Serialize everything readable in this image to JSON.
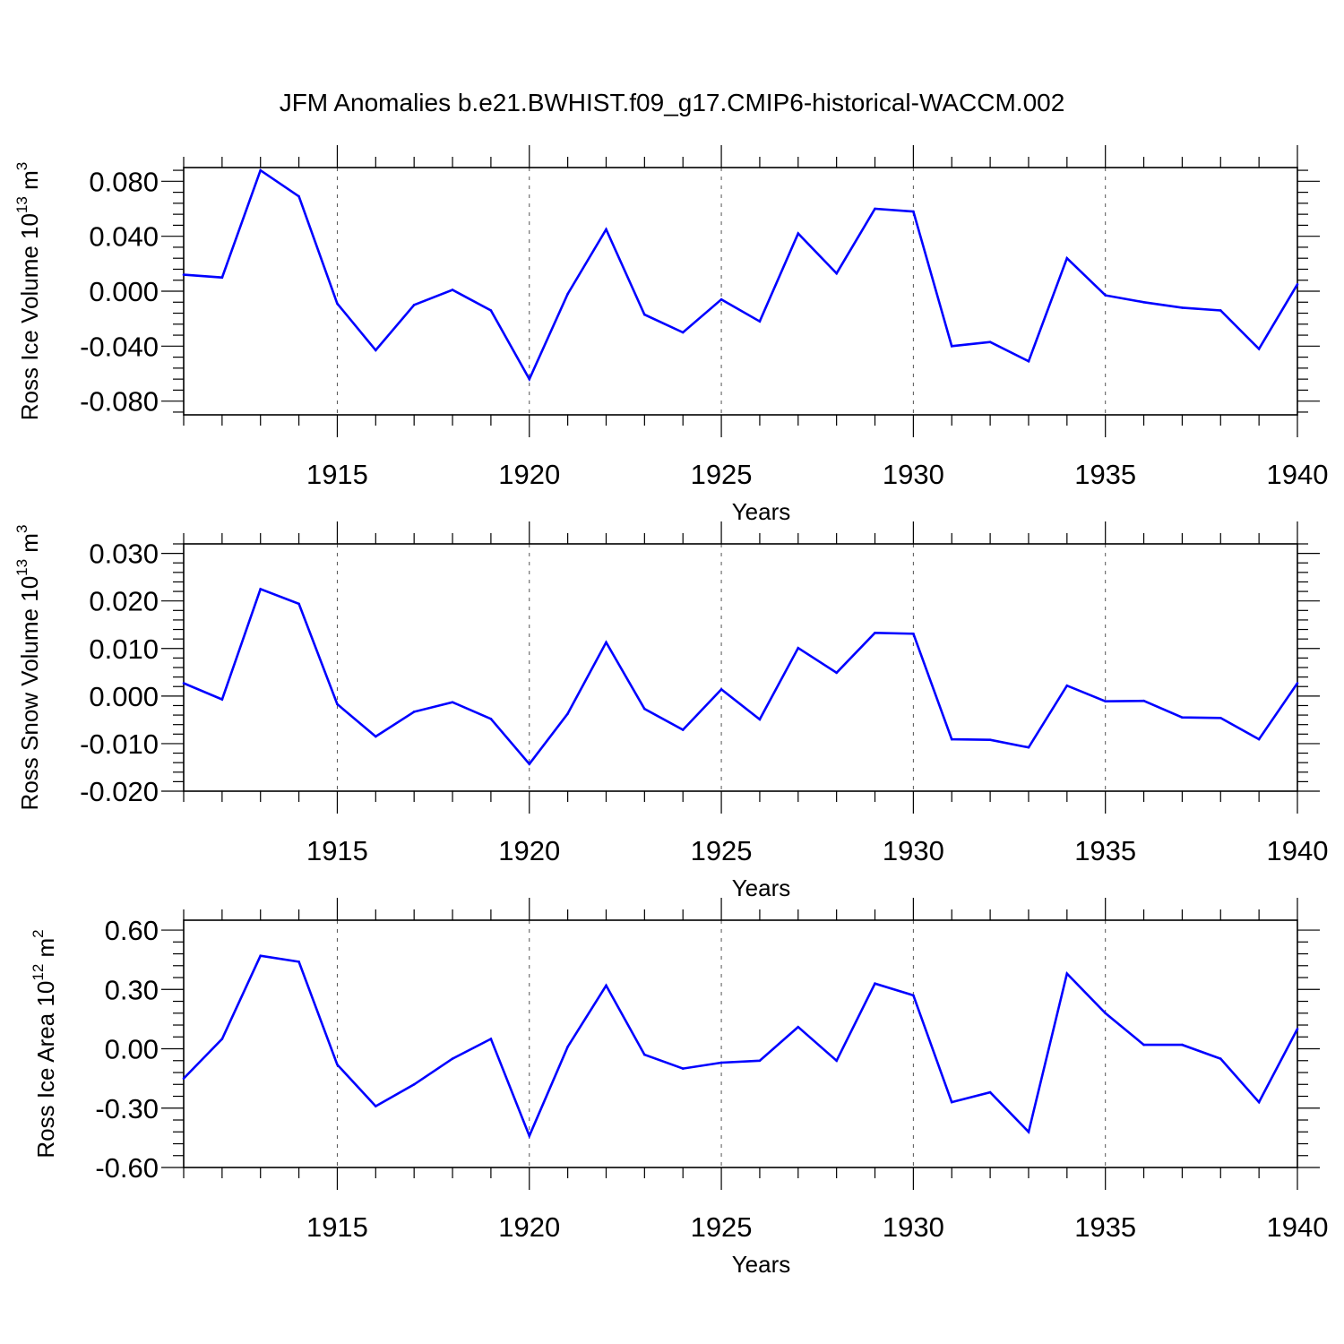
{
  "title": "JFM Anomalies b.e21.BWHIST.f09_g17.CMIP6-historical-WACCM.002",
  "colors": {
    "line": "#0000ff",
    "axes": "#000000",
    "grid": "#555555"
  },
  "chart_data": [
    {
      "type": "line",
      "ylabel": {
        "base": "Ross Ice Volume 10",
        "exponent": "13",
        "unit": " m",
        "unit_exponent": "3"
      },
      "xlabel": "Years",
      "xlim": [
        1911,
        1940
      ],
      "ylim": [
        -0.09,
        0.09
      ],
      "yticks": [
        -0.08,
        -0.04,
        0.0,
        0.04,
        0.08
      ],
      "yticklabels": [
        "-0.080",
        "-0.040",
        "0.000",
        "0.040",
        "0.080"
      ],
      "xticks": [
        1915,
        1920,
        1925,
        1930,
        1935,
        1940
      ],
      "xticklabels": [
        "1915",
        "1920",
        "1925",
        "1930",
        "1935",
        "1940"
      ],
      "grid": "vertical dashed at major x ticks",
      "x": [
        1911,
        1912,
        1913,
        1914,
        1915,
        1916,
        1917,
        1918,
        1919,
        1920,
        1921,
        1922,
        1923,
        1924,
        1925,
        1926,
        1927,
        1928,
        1929,
        1930,
        1931,
        1932,
        1933,
        1934,
        1935,
        1936,
        1937,
        1938,
        1939,
        1940
      ],
      "values": [
        0.012,
        0.01,
        0.088,
        0.069,
        -0.009,
        -0.043,
        -0.01,
        0.001,
        -0.014,
        -0.064,
        -0.002,
        0.045,
        -0.017,
        -0.03,
        -0.006,
        -0.022,
        0.042,
        0.013,
        0.06,
        0.058,
        -0.04,
        -0.037,
        -0.051,
        0.024,
        -0.003,
        -0.008,
        -0.012,
        -0.014,
        -0.042,
        0.005
      ]
    },
    {
      "type": "line",
      "ylabel": {
        "base": "Ross Snow Volume 10",
        "exponent": "13",
        "unit": " m",
        "unit_exponent": "3"
      },
      "xlabel": "Years",
      "xlim": [
        1911,
        1940
      ],
      "ylim": [
        -0.02,
        0.032
      ],
      "yticks": [
        -0.02,
        -0.01,
        0.0,
        0.01,
        0.02,
        0.03
      ],
      "yticklabels": [
        "-0.020",
        "-0.010",
        "0.000",
        "0.010",
        "0.020",
        "0.030"
      ],
      "xticks": [
        1915,
        1920,
        1925,
        1930,
        1935,
        1940
      ],
      "xticklabels": [
        "1915",
        "1920",
        "1925",
        "1930",
        "1935",
        "1940"
      ],
      "grid": "vertical dashed at major x ticks",
      "x": [
        1911,
        1912,
        1913,
        1914,
        1915,
        1916,
        1917,
        1918,
        1919,
        1920,
        1921,
        1922,
        1923,
        1924,
        1925,
        1926,
        1927,
        1928,
        1929,
        1930,
        1931,
        1932,
        1933,
        1934,
        1935,
        1936,
        1937,
        1938,
        1939,
        1940
      ],
      "values": [
        0.0027,
        -0.0007,
        0.0225,
        0.0194,
        -0.0017,
        -0.0085,
        -0.0033,
        -0.0013,
        -0.0048,
        -0.0143,
        -0.0037,
        0.0113,
        -0.0027,
        -0.0071,
        0.0014,
        -0.0049,
        0.0101,
        0.0049,
        0.0133,
        0.0131,
        -0.0091,
        -0.0092,
        -0.0108,
        0.0022,
        -0.0011,
        -0.001,
        -0.0045,
        -0.0046,
        -0.0091,
        0.0027
      ]
    },
    {
      "type": "line",
      "ylabel": {
        "base": "Ross Ice Area 10",
        "exponent": "12",
        "unit": " m",
        "unit_exponent": "2"
      },
      "xlabel": "Years",
      "xlim": [
        1911,
        1940
      ],
      "ylim": [
        -0.6,
        0.65
      ],
      "yticks": [
        -0.6,
        -0.3,
        0.0,
        0.3,
        0.6
      ],
      "yticklabels": [
        "-0.60",
        "-0.30",
        "0.00",
        "0.30",
        "0.60"
      ],
      "xticks": [
        1915,
        1920,
        1925,
        1930,
        1935,
        1940
      ],
      "xticklabels": [
        "1915",
        "1920",
        "1925",
        "1930",
        "1935",
        "1940"
      ],
      "grid": "vertical dashed at major x ticks",
      "x": [
        1911,
        1912,
        1913,
        1914,
        1915,
        1916,
        1917,
        1918,
        1919,
        1920,
        1921,
        1922,
        1923,
        1924,
        1925,
        1926,
        1927,
        1928,
        1929,
        1930,
        1931,
        1932,
        1933,
        1934,
        1935,
        1936,
        1937,
        1938,
        1939,
        1940
      ],
      "values": [
        -0.15,
        0.05,
        0.47,
        0.44,
        -0.08,
        -0.29,
        -0.18,
        -0.05,
        0.05,
        -0.44,
        0.01,
        0.32,
        -0.03,
        -0.1,
        -0.07,
        -0.06,
        0.11,
        -0.06,
        0.33,
        0.27,
        -0.27,
        -0.22,
        -0.42,
        0.38,
        0.18,
        0.02,
        0.02,
        -0.05,
        -0.27,
        0.1
      ]
    }
  ]
}
